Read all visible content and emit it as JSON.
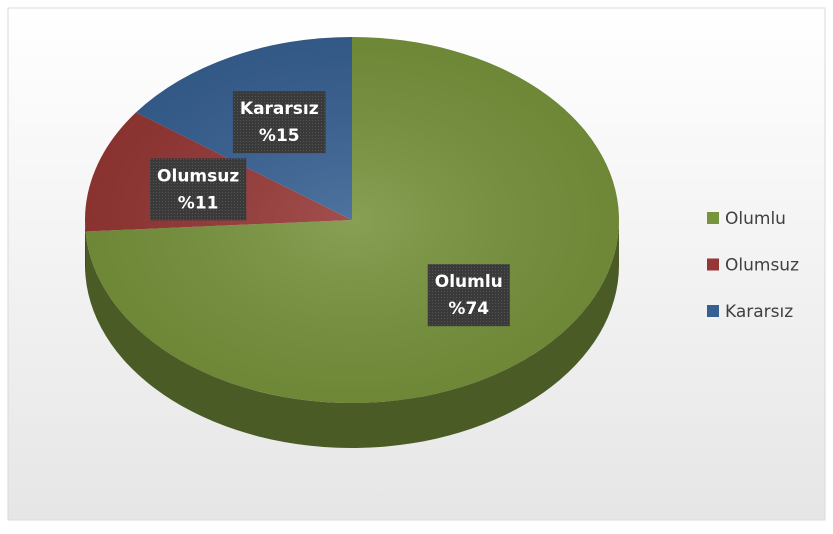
{
  "chart_data": {
    "type": "pie",
    "categories": [
      "Olumlu",
      "Olumsuz",
      "Kararsız"
    ],
    "values": [
      74,
      11,
      15
    ],
    "value_labels": [
      "%74",
      "%11",
      "%15"
    ],
    "colors": [
      "#77933c",
      "#953735",
      "#376092"
    ],
    "legend": "right"
  }
}
